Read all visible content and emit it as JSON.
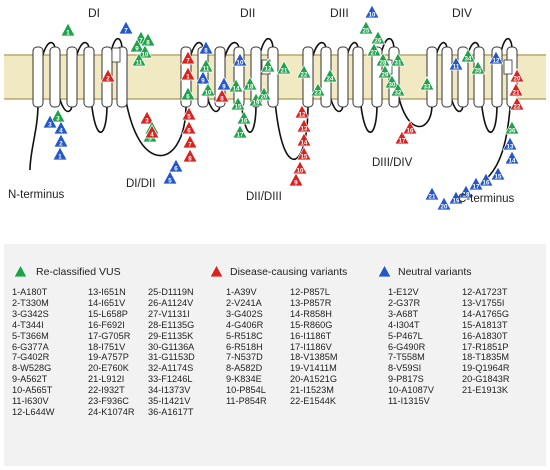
{
  "diagram": {
    "domain_labels": [
      "DI",
      "DII",
      "DIII",
      "DIV"
    ],
    "linker_labels": [
      "DI/DII",
      "DII/DIII",
      "DIII/DIV"
    ],
    "terminal_labels": [
      "N-terminus",
      "C-terminus"
    ],
    "colors": {
      "reclassified": "#1fa34a",
      "disease": "#d9231f",
      "neutral": "#2457c8",
      "membrane": "#f0e9c2",
      "membrane_line": "#b5a96a"
    }
  },
  "legend": {
    "reclassified": {
      "title": "Re-classified VUS",
      "col1": [
        "1-A180T",
        "2-T330M",
        "3-G342S",
        "4-T344I",
        "5-T366M",
        "6-G377A",
        "7-G402R",
        "8-W528G",
        "9-A562T",
        "10-A565T",
        "11-I630V",
        "12-L644W"
      ],
      "col2": [
        "13-I651N",
        "14-I651V",
        "15-L658P",
        "16-F692I",
        "17-G705R",
        "18-I751V",
        "19-A757P",
        "20-E760K",
        "21-L912I",
        "22-I932T",
        "23-F936C",
        "24-K1074R"
      ],
      "col3": [
        "25-D1119N",
        "26-A1124V",
        "27-V1131I",
        "28-E1135G",
        "29-E1135K",
        "30-G1136A",
        "31-G1153D",
        "32-A1174S",
        "33-F1246L",
        "34-I1373V",
        "35-I1421V",
        "36-A1617T"
      ]
    },
    "disease": {
      "title": "Disease-causing variants",
      "col1": [
        "1-A39V",
        "2-V241A",
        "3-G402S",
        "4-G406R",
        "5-R518C",
        "6-R518H",
        "7-N537D",
        "8-A582D",
        "9-K834E",
        "10-P854L",
        "11-P854R"
      ],
      "col2": [
        "12-P857L",
        "13-P857R",
        "14-R858H",
        "15-R860G",
        "16-I1186T",
        "17-I1186V",
        "18-V1385M",
        "19-V1411M",
        "20-A1521G",
        "21-I1523M",
        "22-E1544K"
      ]
    },
    "neutral": {
      "title": "Neutral variants",
      "col1": [
        "1-E12V",
        "2-G37R",
        "3-A68T",
        "4-I304T",
        "5-P467L",
        "6-G490R",
        "7-T558M",
        "8-V59SI",
        "9-P817S",
        "10-A1087V",
        "11-I1315V"
      ],
      "col2": [
        "12-A1723T",
        "13-V1755I",
        "14-A1765G",
        "15-A1813T",
        "16-A1830T",
        "17-R1851P",
        "18-T1835M",
        "19-Q1964R",
        "20-G1843R",
        "21-E1913K"
      ]
    }
  }
}
